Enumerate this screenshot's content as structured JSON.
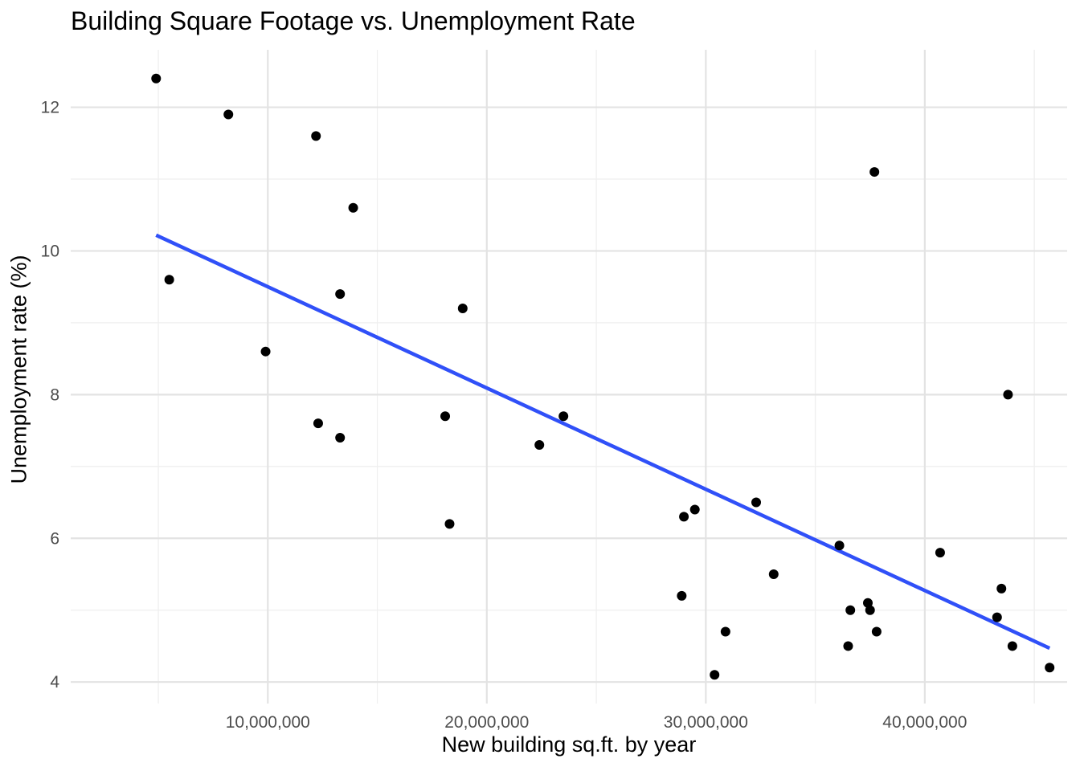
{
  "chart_data": {
    "type": "scatter",
    "title": "Building Square Footage vs. Unemployment Rate",
    "xlabel": "New building sq.ft. by year",
    "ylabel": "Unemployment rate (%)",
    "xlim": [
      1000000,
      46500000
    ],
    "ylim": [
      3.7,
      12.8
    ],
    "x_major_ticks": [
      10000000,
      20000000,
      30000000,
      40000000
    ],
    "x_tick_labels": [
      "10,000,000",
      "20,000,000",
      "30,000,000",
      "40,000,000"
    ],
    "x_minor_ticks": [
      5000000,
      15000000,
      25000000,
      35000000,
      45000000
    ],
    "y_major_ticks": [
      4,
      6,
      8,
      10,
      12
    ],
    "y_tick_labels": [
      "4",
      "6",
      "8",
      "10",
      "12"
    ],
    "y_minor_ticks": [
      5,
      7,
      9,
      11
    ],
    "grid": true,
    "points": [
      {
        "x": 4900000,
        "y": 12.4
      },
      {
        "x": 5500000,
        "y": 9.6
      },
      {
        "x": 8200000,
        "y": 11.9
      },
      {
        "x": 9900000,
        "y": 8.6
      },
      {
        "x": 12200000,
        "y": 11.6
      },
      {
        "x": 12300000,
        "y": 7.6
      },
      {
        "x": 13300000,
        "y": 9.4
      },
      {
        "x": 13300000,
        "y": 7.4
      },
      {
        "x": 13900000,
        "y": 10.6
      },
      {
        "x": 18100000,
        "y": 7.7
      },
      {
        "x": 18300000,
        "y": 6.2
      },
      {
        "x": 18900000,
        "y": 9.2
      },
      {
        "x": 22400000,
        "y": 7.3
      },
      {
        "x": 23500000,
        "y": 7.7
      },
      {
        "x": 28900000,
        "y": 5.2
      },
      {
        "x": 29000000,
        "y": 6.3
      },
      {
        "x": 29500000,
        "y": 6.4
      },
      {
        "x": 30400000,
        "y": 4.1
      },
      {
        "x": 30900000,
        "y": 4.7
      },
      {
        "x": 32300000,
        "y": 6.5
      },
      {
        "x": 33100000,
        "y": 5.5
      },
      {
        "x": 36100000,
        "y": 5.9
      },
      {
        "x": 36500000,
        "y": 4.5
      },
      {
        "x": 36600000,
        "y": 5.0
      },
      {
        "x": 37400000,
        "y": 5.1
      },
      {
        "x": 37500000,
        "y": 5.0
      },
      {
        "x": 37700000,
        "y": 11.1
      },
      {
        "x": 37800000,
        "y": 4.7
      },
      {
        "x": 40700000,
        "y": 5.8
      },
      {
        "x": 43300000,
        "y": 4.9
      },
      {
        "x": 43500000,
        "y": 5.3
      },
      {
        "x": 43800000,
        "y": 8.0
      },
      {
        "x": 44000000,
        "y": 4.5
      },
      {
        "x": 45700000,
        "y": 4.2
      }
    ],
    "trend_line": {
      "x": [
        4900000,
        45700000
      ],
      "y": [
        10.22,
        4.47
      ],
      "color": "#3050f8"
    },
    "point_color": "#000000"
  }
}
